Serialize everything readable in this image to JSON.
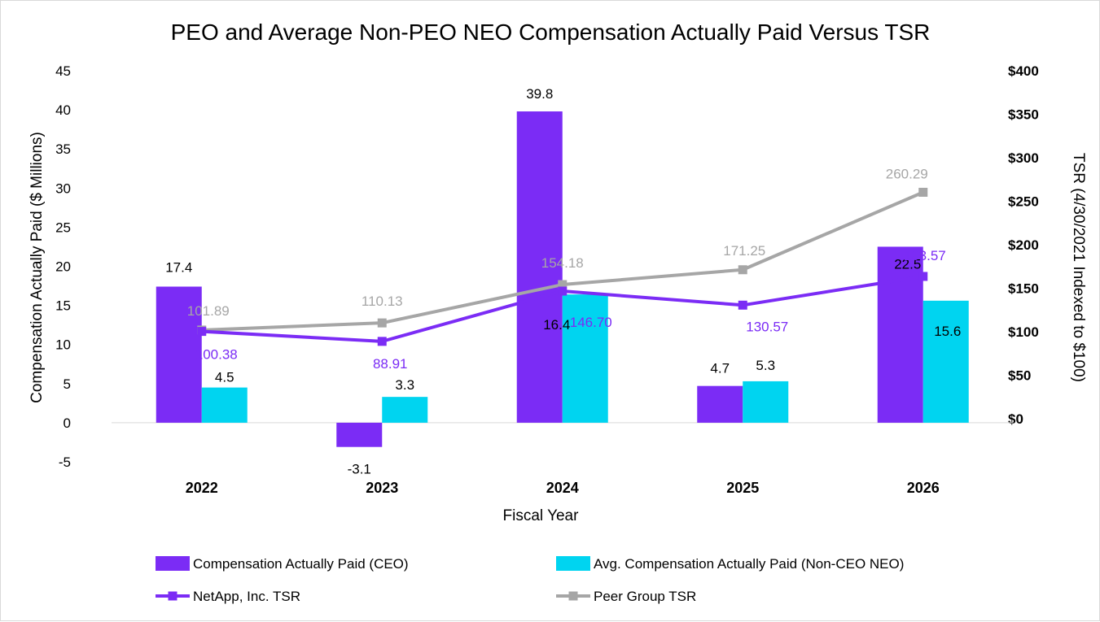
{
  "chart_data": {
    "type": "bar",
    "title": "PEO and Average Non-PEO NEO Compensation Actually Paid Versus TSR",
    "xlabel": "Fiscal Year",
    "ylabel": "Compensation Actually Paid ($ Millions)",
    "y2label": "TSR (4/30/2021 Indexed to $100)",
    "categories": [
      "2022",
      "2023",
      "2024",
      "2025",
      "2026"
    ],
    "ylim": [
      -5,
      45
    ],
    "yticks": [
      "45",
      "40",
      "35",
      "30",
      "25",
      "20",
      "15",
      "10",
      "5",
      "0",
      "-5"
    ],
    "y2lim": [
      0,
      400
    ],
    "y2ticks": [
      "$400",
      "$350",
      "$300",
      "$250",
      "$200",
      "$150",
      "$100",
      "$50",
      "$0"
    ],
    "grid": false,
    "legend_position": "bottom",
    "series": [
      {
        "name": "Compensation Actually Paid (CEO)",
        "type": "bar",
        "axis": "left",
        "color": "#7b2cf5",
        "values": [
          17.4,
          -3.1,
          39.8,
          4.7,
          22.5
        ],
        "labels": [
          "17.4",
          "-3.1",
          "39.8",
          "4.7",
          "22.5"
        ]
      },
      {
        "name": "Avg. Compensation Actually Paid (Non-CEO NEO)",
        "type": "bar",
        "axis": "left",
        "color": "#00d4f0",
        "values": [
          4.5,
          3.3,
          16.4,
          5.3,
          15.6
        ],
        "labels": [
          "4.5",
          "3.3",
          "16.4",
          "5.3",
          "15.6"
        ]
      },
      {
        "name": "NetApp, Inc. TSR",
        "type": "line",
        "axis": "right",
        "color": "#7b2cf5",
        "label_color": "#7b2cf5",
        "values": [
          100.38,
          88.91,
          146.7,
          130.57,
          163.57
        ],
        "labels": [
          "100.38",
          "88.91",
          "146.70",
          "130.57",
          "163.57"
        ]
      },
      {
        "name": "Peer Group TSR",
        "type": "line",
        "axis": "right",
        "color": "#a6a6a6",
        "label_color": "#a6a6a6",
        "values": [
          101.89,
          110.13,
          154.18,
          171.25,
          260.29
        ],
        "labels": [
          "101.89",
          "110.13",
          "154.18",
          "171.25",
          "260.29"
        ]
      }
    ]
  }
}
